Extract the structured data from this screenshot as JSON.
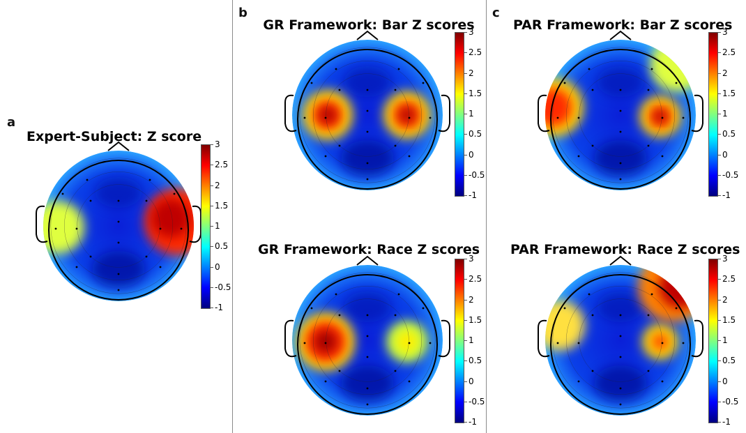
{
  "panels": [
    {
      "letter": "a",
      "title": "Expert-Subject: Z score"
    },
    {
      "letter": "b",
      "title": "GR Framework: Bar Z scores"
    },
    {
      "letter": "",
      "title": "GR Framework: Race Z scores"
    },
    {
      "letter": "c",
      "title": "PAR Framework: Bar Z scores"
    },
    {
      "letter": "",
      "title": "PAR Framework: Race Z scores"
    }
  ],
  "colorbar": {
    "ticks": [
      "3",
      "2.5",
      "2",
      "1.5",
      "1",
      "0.5",
      "0",
      "-0.5",
      "-1"
    ],
    "range": [
      -1,
      3
    ],
    "colormap": [
      "#000080",
      "#0000ff",
      "#0080ff",
      "#00ffff",
      "#80ff80",
      "#ffff00",
      "#ff8000",
      "#ff0000",
      "#800000"
    ]
  }
}
